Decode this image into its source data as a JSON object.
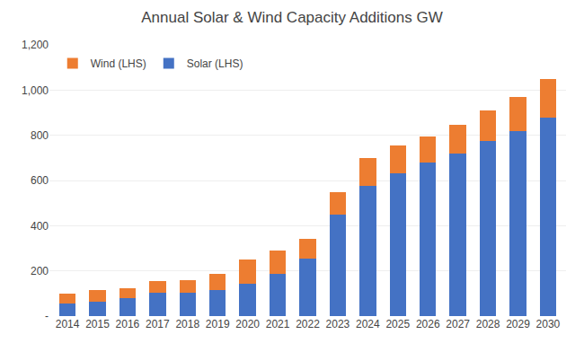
{
  "chart_data": {
    "type": "bar",
    "title": "Annual Solar & Wind Capacity Additions GW",
    "categories": [
      "2014",
      "2015",
      "2016",
      "2017",
      "2018",
      "2019",
      "2020",
      "2021",
      "2022",
      "2023",
      "2024",
      "2025",
      "2026",
      "2027",
      "2028",
      "2029",
      "2030"
    ],
    "series": [
      {
        "name": "Solar (LHS)",
        "color": "#4472C4",
        "values": [
          55,
          65,
          80,
          105,
          105,
          115,
          145,
          185,
          255,
          450,
          575,
          630,
          680,
          720,
          775,
          820,
          880
        ]
      },
      {
        "name": "Wind (LHS)",
        "color": "#ED7D31",
        "values": [
          45,
          50,
          45,
          50,
          55,
          70,
          105,
          105,
          85,
          100,
          125,
          125,
          115,
          125,
          135,
          150,
          170
        ]
      }
    ],
    "stacked": true,
    "ylim": [
      0,
      1200
    ],
    "yticks": [
      {
        "value": 0,
        "label": "-"
      },
      200,
      400,
      600,
      800,
      {
        "value": 1000,
        "label": "1,000"
      },
      {
        "value": 1200,
        "label": "1,200"
      }
    ],
    "grid": true,
    "legend": "upper left"
  }
}
